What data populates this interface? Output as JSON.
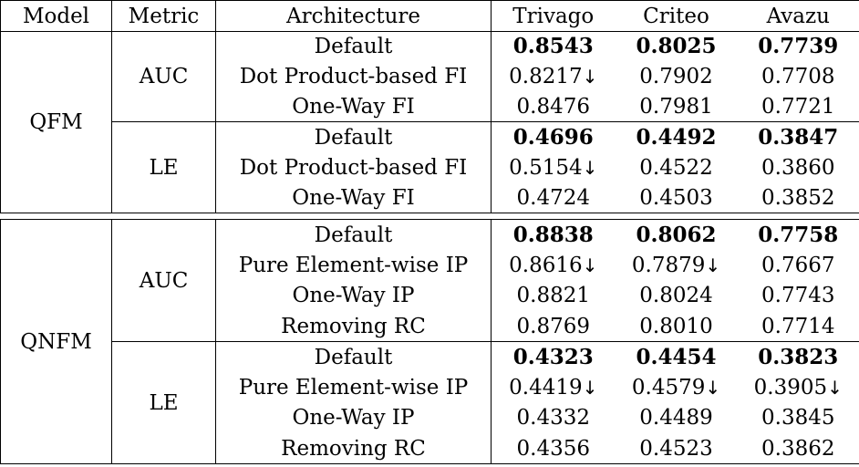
{
  "header": {
    "model": "Model",
    "metric": "Metric",
    "architecture": "Architecture",
    "trivago": "Trivago",
    "criteo": "Criteo",
    "avazu": "Avazu"
  },
  "qfm": {
    "model": "QFM",
    "auc": {
      "metric": "AUC",
      "rows": [
        {
          "arch": "Default",
          "trivago": "0.8543",
          "criteo": "0.8025",
          "avazu": "0.7739"
        },
        {
          "arch": "Dot Product-based FI",
          "trivago": "0.8217",
          "criteo": "0.7902",
          "avazu": "0.7708"
        },
        {
          "arch": "One-Way FI",
          "trivago": "0.8476",
          "criteo": "0.7981",
          "avazu": "0.7721"
        }
      ]
    },
    "le": {
      "metric": "LE",
      "rows": [
        {
          "arch": "Default",
          "trivago": "0.4696",
          "criteo": "0.4492",
          "avazu": "0.3847"
        },
        {
          "arch": "Dot Product-based FI",
          "trivago": "0.5154",
          "criteo": "0.4522",
          "avazu": "0.3860"
        },
        {
          "arch": "One-Way FI",
          "trivago": "0.4724",
          "criteo": "0.4503",
          "avazu": "0.3852"
        }
      ]
    }
  },
  "qnfm": {
    "model": "QNFM",
    "auc": {
      "metric": "AUC",
      "rows": [
        {
          "arch": "Default",
          "trivago": "0.8838",
          "criteo": "0.8062",
          "avazu": "0.7758"
        },
        {
          "arch": "Pure Element-wise IP",
          "trivago": "0.8616",
          "criteo": "0.7879",
          "avazu": "0.7667"
        },
        {
          "arch": "One-Way IP",
          "trivago": "0.8821",
          "criteo": "0.8024",
          "avazu": "0.7743"
        },
        {
          "arch": "Removing RC",
          "trivago": "0.8769",
          "criteo": "0.8010",
          "avazu": "0.7714"
        }
      ]
    },
    "le": {
      "metric": "LE",
      "rows": [
        {
          "arch": "Default",
          "trivago": "0.4323",
          "criteo": "0.4454",
          "avazu": "0.3823"
        },
        {
          "arch": "Pure Element-wise IP",
          "trivago": "0.4419",
          "criteo": "0.4579",
          "avazu": "0.3905"
        },
        {
          "arch": "One-Way IP",
          "trivago": "0.4332",
          "criteo": "0.4489",
          "avazu": "0.3845"
        },
        {
          "arch": "Removing RC",
          "trivago": "0.4356",
          "criteo": "0.4523",
          "avazu": "0.3862"
        }
      ]
    }
  },
  "arrow_glyph": "↓"
}
